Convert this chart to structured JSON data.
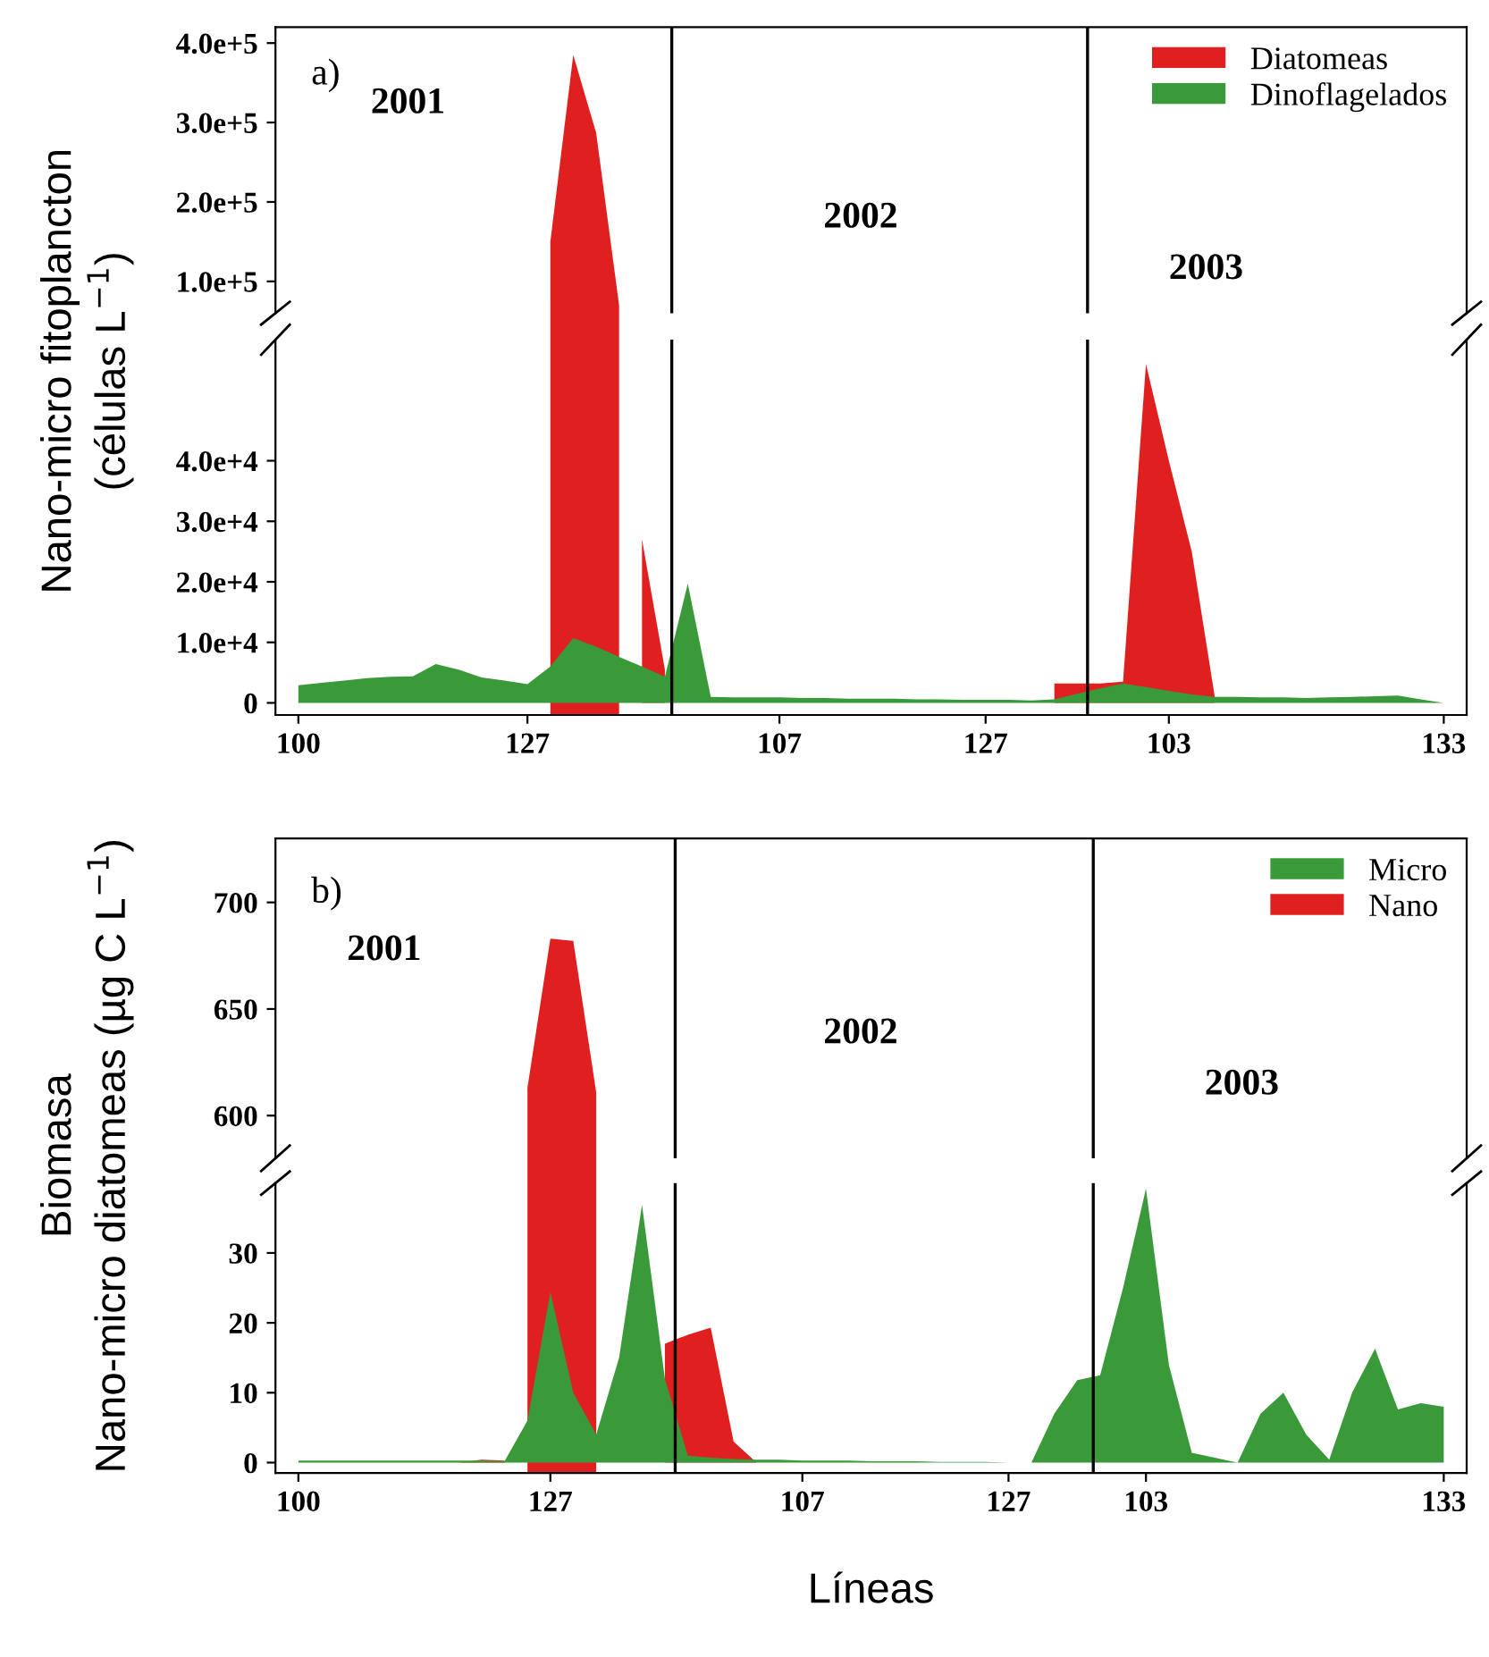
{
  "chart_data": [
    {
      "type": "area",
      "tick_labels": "y",
      "categories": [
        "100",
        null,
        null,
        null,
        null,
        null,
        null,
        null,
        null,
        null,
        "127",
        null,
        null,
        null,
        null,
        null,
        null,
        null,
        null,
        null,
        null,
        "107",
        null,
        null,
        null,
        null,
        null,
        null,
        null,
        null,
        "127",
        null,
        null,
        null,
        null,
        null,
        null,
        null,
        "103",
        null,
        null,
        null,
        null,
        null,
        null,
        null,
        null,
        null,
        null,
        null,
        "133"
      ],
      "series": [
        {
          "name": "Diatomeas",
          "color": "#e0201f",
          "values": [
            null,
            null,
            null,
            null,
            null,
            null,
            null,
            null,
            null,
            null,
            null,
            150000,
            385000,
            287000,
            70000,
            null,
            null,
            null,
            null,
            null,
            null,
            null,
            null,
            null,
            null,
            null,
            null,
            null,
            null,
            null,
            null,
            null,
            null,
            null,
            null,
            null,
            null,
            null,
            null,
            null,
            null,
            null,
            null,
            null,
            null,
            null,
            null,
            null,
            null,
            null,
            null
          ]
        },
        {
          "name": "Dinoflagelados",
          "color": "#3a9a3a",
          "values": [
            null,
            null,
            null,
            null,
            null,
            null,
            null,
            null,
            null,
            null,
            null,
            null,
            null,
            null,
            null,
            null,
            null,
            null,
            null,
            null,
            null,
            null,
            null,
            null,
            null,
            null,
            null,
            null,
            null,
            null,
            null,
            null,
            null,
            null,
            null,
            null,
            null,
            null,
            null,
            null,
            null,
            null,
            null,
            null,
            null,
            null,
            null,
            null,
            null,
            null,
            null
          ]
        }
      ],
      "ylim": [
        60000,
        420000
      ],
      "yticks": [
        {
          "value": 100000,
          "label": "1.0e+5"
        },
        {
          "value": 200000,
          "label": "2.0e+5"
        },
        {
          "value": 300000,
          "label": "3.0e+5"
        },
        {
          "value": 400000,
          "label": "4.0e+5"
        }
      ],
      "annotations": [
        "a)",
        "2001",
        "2002",
        "2003"
      ],
      "legend": "top right",
      "grid": false
    },
    {
      "type": "area",
      "ylabel": "Nano-micro fitoplancton\n(células L$^{−1}$)",
      "categories": [
        "100",
        null,
        null,
        null,
        null,
        null,
        null,
        null,
        null,
        null,
        "127",
        null,
        null,
        null,
        null,
        null,
        null,
        null,
        null,
        null,
        null,
        "107",
        null,
        null,
        null,
        null,
        null,
        null,
        null,
        null,
        "127",
        null,
        null,
        null,
        null,
        null,
        null,
        null,
        "103",
        null,
        null,
        null,
        null,
        null,
        null,
        null,
        null,
        null,
        null,
        null,
        "133"
      ],
      "series": [
        {
          "color": "#e0201f",
          "values": [
            null,
            null,
            null,
            null,
            null,
            null,
            null,
            null,
            null,
            null,
            null,
            null,
            null,
            null,
            null,
            27000,
            5500,
            null,
            null,
            null,
            null,
            null,
            null,
            null,
            null,
            null,
            null,
            null,
            null,
            null,
            null,
            null,
            null,
            3200,
            3200,
            3200,
            3500,
            56000,
            40000,
            25000,
            1100,
            null,
            null,
            null,
            null,
            null,
            null,
            null,
            null,
            null,
            null
          ]
        },
        {
          "color": "#3a9a3a",
          "values": [
            2900,
            3300,
            3700,
            4100,
            4300,
            4400,
            6400,
            5500,
            4200,
            3700,
            3100,
            6000,
            10700,
            9300,
            7600,
            6000,
            4300,
            19700,
            1000,
            900,
            900,
            900,
            800,
            800,
            700,
            700,
            700,
            600,
            600,
            500,
            500,
            500,
            400,
            600,
            1500,
            2400,
            3200,
            2600,
            2000,
            1400,
            1000,
            1000,
            900,
            900,
            800,
            900,
            1000,
            1100,
            1200,
            600,
            0
          ]
        }
      ],
      "ylim": [
        -2000,
        60000
      ],
      "yticks": [
        0,
        {
          "value": 10000,
          "label": "1.0e+4"
        },
        {
          "value": 20000,
          "label": "2.0e+4"
        },
        {
          "value": 30000,
          "label": "3.0e+4"
        },
        {
          "value": 40000,
          "label": "4.0e+4"
        }
      ],
      "grid": false
    },
    {
      "type": "area",
      "tick_labels": "y",
      "categories": [
        "100",
        null,
        null,
        null,
        null,
        null,
        null,
        null,
        null,
        null,
        null,
        "127",
        null,
        null,
        null,
        null,
        null,
        null,
        null,
        null,
        null,
        null,
        "107",
        null,
        null,
        null,
        null,
        null,
        null,
        null,
        null,
        "127",
        null,
        null,
        null,
        null,
        null,
        "103",
        null,
        null,
        null,
        null,
        null,
        null,
        null,
        null,
        null,
        null,
        null,
        null,
        "133"
      ],
      "series": [
        {
          "name": "Micro",
          "color": "#3a9a3a",
          "values": [
            null,
            null,
            null,
            null,
            null,
            null,
            null,
            null,
            null,
            null,
            null,
            null,
            null,
            null,
            null,
            null,
            null,
            null,
            null,
            null,
            null,
            null,
            null,
            null,
            null,
            null,
            null,
            null,
            null,
            null,
            null,
            null,
            null,
            null,
            null,
            null,
            null,
            null,
            null,
            null,
            null,
            null,
            null,
            null,
            null,
            null,
            null,
            null,
            null,
            null,
            null
          ]
        },
        {
          "name": "Nano",
          "color": "#e0201f",
          "values": [
            null,
            null,
            null,
            null,
            null,
            null,
            null,
            null,
            null,
            null,
            613,
            683,
            682,
            611,
            null,
            null,
            null,
            null,
            null,
            null,
            null,
            null,
            null,
            null,
            null,
            null,
            null,
            null,
            null,
            null,
            null,
            null,
            null,
            null,
            null,
            null,
            null,
            null,
            null,
            null,
            null,
            null,
            null,
            null,
            null,
            null,
            null,
            null,
            null,
            null,
            null
          ]
        }
      ],
      "ylim": [
        580,
        730
      ],
      "yticks": [
        600,
        650,
        700
      ],
      "annotations": [
        "b)",
        "2001",
        "2002",
        "2003"
      ],
      "legend": "top right",
      "grid": false
    },
    {
      "type": "area",
      "ylabel": "Biomasa\nNano-micro diatomeas (µg C L$^{−1}$)",
      "xlabel": "Líneas",
      "categories": [
        "100",
        null,
        null,
        null,
        null,
        null,
        null,
        null,
        null,
        null,
        null,
        "127",
        null,
        null,
        null,
        null,
        null,
        null,
        null,
        null,
        null,
        null,
        "107",
        null,
        null,
        null,
        null,
        null,
        null,
        null,
        null,
        "127",
        null,
        null,
        null,
        null,
        null,
        "103",
        null,
        null,
        null,
        null,
        null,
        null,
        null,
        null,
        null,
        null,
        null,
        null,
        "133"
      ],
      "series": [
        {
          "color": "#e0201f",
          "values": [
            0,
            0,
            0,
            0,
            0,
            0,
            0,
            0,
            0.4,
            0.3,
            null,
            null,
            null,
            null,
            null,
            null,
            17,
            18.3,
            19.3,
            3,
            0,
            0,
            0,
            0,
            0,
            0,
            0,
            0,
            0,
            0,
            0,
            0,
            0,
            0,
            0,
            0,
            0,
            0,
            null,
            null,
            null,
            null,
            null,
            null,
            null,
            null,
            null,
            null,
            null,
            null,
            null
          ]
        },
        {
          "color": "#3a9a3a",
          "values": [
            0.3,
            0.3,
            0.3,
            0.3,
            0.3,
            0.3,
            0.3,
            0.3,
            0.3,
            0.2,
            6,
            24.4,
            10,
            4,
            15,
            36.9,
            12,
            1,
            0.7,
            0.5,
            0.4,
            0.4,
            0.3,
            0.3,
            0.3,
            0.2,
            0.2,
            0.2,
            0.1,
            0.1,
            0.1,
            0,
            0,
            7,
            11.8,
            12.5,
            25,
            39.2,
            14,
            1.4,
            0.7,
            0,
            7,
            10,
            4,
            0.4,
            10,
            16.3,
            7.6,
            8.5,
            8
          ]
        }
      ],
      "ylim": [
        -1.5,
        40
      ],
      "yticks": [
        0,
        10,
        20,
        30
      ],
      "grid": false
    }
  ]
}
